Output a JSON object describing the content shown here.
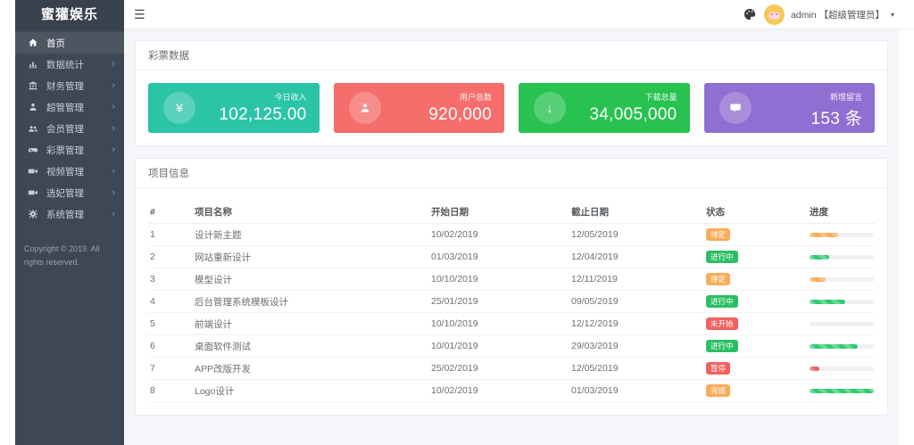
{
  "app": {
    "logo": "蜜獾娱乐",
    "copyright": "Copyright © 2019. All rights reserved."
  },
  "icons": {
    "hamburger": "☰",
    "chevron_right": "›",
    "caret_down": "▾",
    "yen": "¥",
    "download_arrow": "↓"
  },
  "topbar": {
    "user": "admin 【超级管理员】"
  },
  "sidebar": {
    "items": [
      {
        "label": "首页"
      },
      {
        "label": "数据统计"
      },
      {
        "label": "财务管理"
      },
      {
        "label": "超管管理"
      },
      {
        "label": "会员管理"
      },
      {
        "label": "彩票管理"
      },
      {
        "label": "视频管理"
      },
      {
        "label": "选妃管理"
      },
      {
        "label": "系统管理"
      }
    ]
  },
  "stats": {
    "title": "彩票数据",
    "cards": [
      {
        "label": "今日收入",
        "value": "102,125.00",
        "color": "#2CC4A7"
      },
      {
        "label": "用户总数",
        "value": "920,000",
        "color": "#F56E6B"
      },
      {
        "label": "下载总量",
        "value": "34,005,000",
        "color": "#28C250"
      },
      {
        "label": "新增留言",
        "value": "153 条",
        "color": "#8F6FD1"
      }
    ]
  },
  "projects": {
    "title": "项目信息",
    "headers": [
      "#",
      "项目名称",
      "开始日期",
      "截止日期",
      "状态",
      "进度"
    ],
    "rows": [
      {
        "num": "1",
        "name": "设计新主题",
        "start": "10/02/2019",
        "end": "12/05/2019",
        "status": "待定",
        "status_color": "#F8AC59",
        "progress_pct": 45,
        "progress_color": "#F8AC59"
      },
      {
        "num": "2",
        "name": "网站重新设计",
        "start": "01/03/2019",
        "end": "12/04/2019",
        "status": "进行中",
        "status_color": "#2DBE64",
        "progress_pct": 30,
        "progress_color": "#2ECC71"
      },
      {
        "num": "3",
        "name": "模型设计",
        "start": "10/10/2019",
        "end": "12/11/2019",
        "status": "待定",
        "status_color": "#F8AC59",
        "progress_pct": 25,
        "progress_color": "#F8AC59"
      },
      {
        "num": "4",
        "name": "后台管理系统模板设计",
        "start": "25/01/2019",
        "end": "09/05/2019",
        "status": "进行中",
        "status_color": "#2DBE64",
        "progress_pct": 55,
        "progress_color": "#2ECC71"
      },
      {
        "num": "5",
        "name": "前端设计",
        "start": "10/10/2019",
        "end": "12/12/2019",
        "status": "未开始",
        "status_color": "#F0625F",
        "progress_pct": 0,
        "progress_color": "#2ECC71"
      },
      {
        "num": "6",
        "name": "桌面软件测试",
        "start": "10/01/2019",
        "end": "29/03/2019",
        "status": "进行中",
        "status_color": "#2DBE64",
        "progress_pct": 75,
        "progress_color": "#2ECC71"
      },
      {
        "num": "7",
        "name": "APP改版开发",
        "start": "25/02/2019",
        "end": "12/05/2019",
        "status": "暂停",
        "status_color": "#F0625F",
        "progress_pct": 15,
        "progress_color": "#F0625F"
      },
      {
        "num": "8",
        "name": "Logo设计",
        "start": "10/02/2019",
        "end": "01/03/2019",
        "status": "完成",
        "status_color": "#F8AC59",
        "progress_pct": 100,
        "progress_color": "#2ECC71"
      }
    ]
  }
}
